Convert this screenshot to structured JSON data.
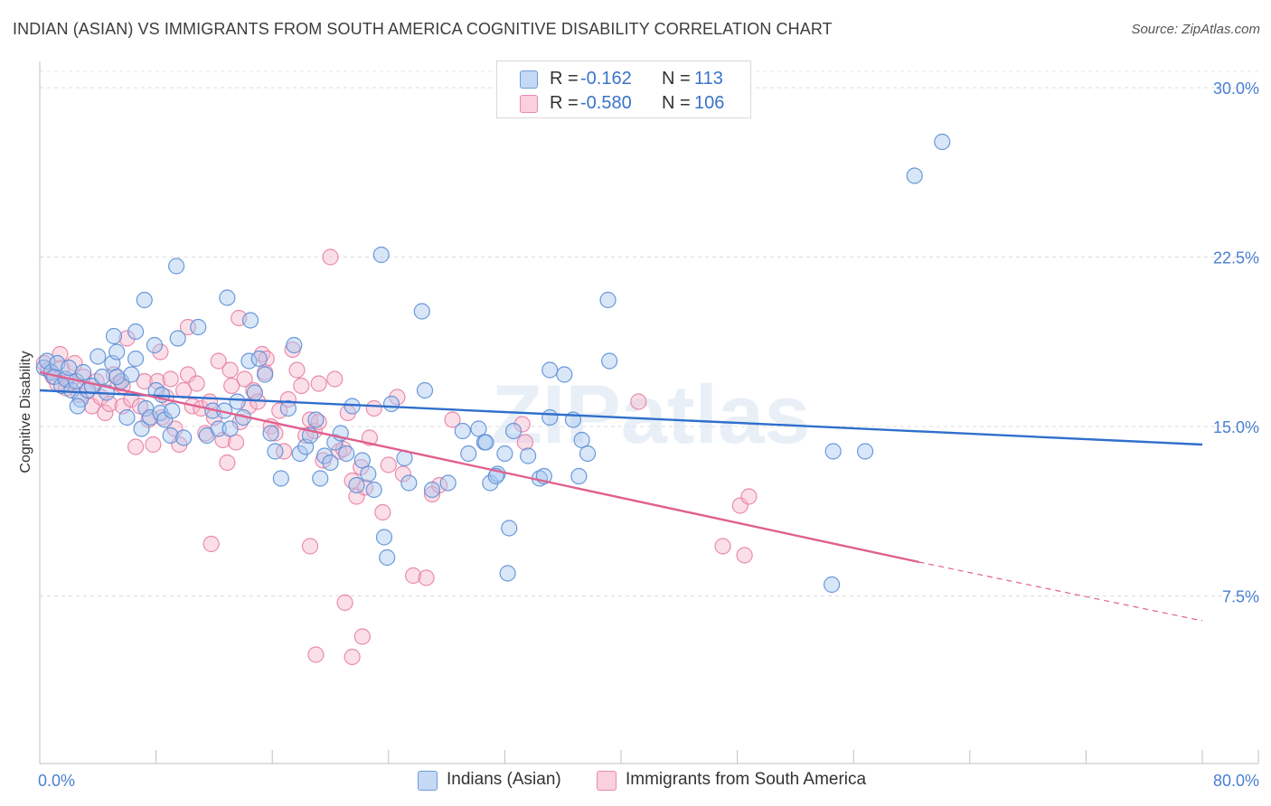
{
  "title": "INDIAN (ASIAN) VS IMMIGRANTS FROM SOUTH AMERICA COGNITIVE DISABILITY CORRELATION CHART",
  "source": "Source: ZipAtlas.com",
  "watermark": "ZIPatlas",
  "legend": {
    "series1": {
      "r_label": "R =",
      "r_value": "-0.162",
      "n_label": "N =",
      "n_value": "113"
    },
    "series2": {
      "r_label": "R =",
      "r_value": "-0.580",
      "n_label": "N =",
      "n_value": "106"
    }
  },
  "colors": {
    "blue_fill": "#a9c8f0",
    "blue_stroke": "#5b8ed6",
    "blue_line": "#2f6fcc",
    "pink_fill": "#f7b7cb",
    "pink_stroke": "#e77fa3",
    "pink_line": "#e0608e",
    "tick_text": "#4a7fd0"
  },
  "chart_data": {
    "type": "scatter",
    "title": "INDIAN (ASIAN) VS IMMIGRANTS FROM SOUTH AMERICA COGNITIVE DISABILITY CORRELATION CHART",
    "xlabel": "",
    "ylabel": "Cognitive Disability",
    "xlim": [
      0,
      80
    ],
    "ylim": [
      0,
      31
    ],
    "x_tick_labels": [
      "0.0%",
      "80.0%"
    ],
    "y_ticks": [
      7.5,
      15.0,
      22.5,
      30.0
    ],
    "y_tick_labels": [
      "7.5%",
      "15.0%",
      "22.5%",
      "30.0%"
    ],
    "grid": true,
    "legend_position": "top-center",
    "series": [
      {
        "name": "Indians (Asian)",
        "color": "#a9c8f0",
        "trend": {
          "x": [
            0,
            80
          ],
          "y": [
            16.6,
            14.2
          ]
        },
        "points": [
          [
            0.3,
            17.6
          ],
          [
            0.5,
            17.9
          ],
          [
            0.8,
            17.4
          ],
          [
            1.0,
            17.2
          ],
          [
            1.2,
            17.8
          ],
          [
            1.5,
            16.8
          ],
          [
            1.8,
            17.1
          ],
          [
            2.0,
            17.6
          ],
          [
            2.2,
            16.6
          ],
          [
            2.5,
            17.0
          ],
          [
            2.8,
            16.2
          ],
          [
            3.0,
            17.4
          ],
          [
            3.3,
            16.6
          ],
          [
            3.6,
            16.8
          ],
          [
            4.0,
            18.1
          ],
          [
            4.3,
            17.2
          ],
          [
            4.6,
            16.5
          ],
          [
            5.0,
            17.8
          ],
          [
            5.3,
            18.3
          ],
          [
            5.6,
            17.0
          ],
          [
            6.0,
            15.4
          ],
          [
            6.3,
            17.3
          ],
          [
            6.6,
            18.0
          ],
          [
            7.0,
            14.9
          ],
          [
            7.3,
            15.8
          ],
          [
            7.6,
            15.4
          ],
          [
            8.0,
            16.6
          ],
          [
            8.3,
            15.6
          ],
          [
            8.6,
            15.3
          ],
          [
            9.0,
            14.6
          ],
          [
            5.3,
            17.2
          ],
          [
            2.6,
            15.9
          ],
          [
            5.1,
            19.0
          ],
          [
            6.6,
            19.2
          ],
          [
            7.2,
            20.6
          ],
          [
            7.9,
            18.6
          ],
          [
            8.4,
            16.4
          ],
          [
            9.1,
            15.7
          ],
          [
            9.5,
            18.9
          ],
          [
            9.9,
            14.5
          ],
          [
            11.5,
            14.6
          ],
          [
            11.9,
            15.7
          ],
          [
            12.3,
            14.9
          ],
          [
            12.7,
            15.7
          ],
          [
            13.1,
            14.9
          ],
          [
            13.6,
            16.1
          ],
          [
            14.0,
            15.4
          ],
          [
            14.4,
            17.9
          ],
          [
            14.8,
            16.5
          ],
          [
            15.1,
            18.0
          ],
          [
            15.5,
            17.3
          ],
          [
            15.9,
            14.7
          ],
          [
            16.2,
            13.9
          ],
          [
            16.6,
            12.7
          ],
          [
            17.1,
            15.8
          ],
          [
            17.5,
            18.6
          ],
          [
            17.9,
            13.8
          ],
          [
            18.3,
            14.1
          ],
          [
            18.6,
            14.6
          ],
          [
            19.0,
            15.3
          ],
          [
            19.3,
            12.7
          ],
          [
            19.6,
            13.7
          ],
          [
            20.0,
            13.4
          ],
          [
            20.3,
            14.3
          ],
          [
            20.7,
            14.7
          ],
          [
            21.1,
            13.8
          ],
          [
            21.5,
            15.9
          ],
          [
            21.8,
            12.4
          ],
          [
            22.2,
            13.5
          ],
          [
            22.6,
            12.9
          ],
          [
            23.0,
            12.2
          ],
          [
            23.7,
            10.1
          ],
          [
            23.9,
            9.2
          ],
          [
            24.2,
            16.0
          ],
          [
            25.1,
            13.6
          ],
          [
            25.4,
            12.5
          ],
          [
            26.5,
            16.6
          ],
          [
            27.0,
            12.2
          ],
          [
            28.1,
            12.5
          ],
          [
            29.1,
            14.8
          ],
          [
            29.5,
            13.8
          ],
          [
            30.2,
            14.9
          ],
          [
            30.6,
            14.3
          ],
          [
            31.0,
            12.5
          ],
          [
            31.5,
            12.9
          ],
          [
            32.0,
            13.8
          ],
          [
            32.3,
            10.5
          ],
          [
            32.6,
            14.8
          ],
          [
            33.6,
            13.7
          ],
          [
            34.4,
            12.7
          ],
          [
            34.7,
            12.8
          ],
          [
            35.1,
            17.5
          ],
          [
            36.1,
            17.3
          ],
          [
            36.7,
            15.3
          ],
          [
            37.3,
            14.4
          ],
          [
            37.7,
            13.8
          ],
          [
            39.1,
            20.6
          ],
          [
            39.2,
            17.9
          ],
          [
            37.1,
            12.8
          ],
          [
            32.2,
            8.5
          ],
          [
            30.7,
            14.3
          ],
          [
            12.9,
            20.7
          ],
          [
            10.9,
            19.4
          ],
          [
            9.4,
            22.1
          ],
          [
            14.5,
            19.7
          ],
          [
            23.5,
            22.6
          ],
          [
            26.3,
            20.1
          ],
          [
            31.4,
            12.8
          ],
          [
            54.6,
            13.9
          ],
          [
            56.8,
            13.9
          ],
          [
            60.2,
            26.1
          ],
          [
            62.1,
            27.6
          ],
          [
            54.5,
            8.0
          ],
          [
            35.1,
            15.4
          ]
        ]
      },
      {
        "name": "Immigrants from South America",
        "color": "#f7b7cb",
        "trend": {
          "x": [
            0,
            60.5
          ],
          "y": [
            17.4,
            9.0
          ]
        },
        "trend_dashed": {
          "x": [
            60.5,
            80
          ],
          "y": [
            9.0,
            6.4
          ]
        },
        "points": [
          [
            0.3,
            17.8
          ],
          [
            0.6,
            17.5
          ],
          [
            0.9,
            17.2
          ],
          [
            1.2,
            16.9
          ],
          [
            1.5,
            17.6
          ],
          [
            1.8,
            16.7
          ],
          [
            2.1,
            17.0
          ],
          [
            2.4,
            17.8
          ],
          [
            2.7,
            16.4
          ],
          [
            3.0,
            17.2
          ],
          [
            3.3,
            16.6
          ],
          [
            3.6,
            15.9
          ],
          [
            3.9,
            17.0
          ],
          [
            4.2,
            16.3
          ],
          [
            4.5,
            15.6
          ],
          [
            4.8,
            16.0
          ],
          [
            5.1,
            17.3
          ],
          [
            5.4,
            16.9
          ],
          [
            5.7,
            15.9
          ],
          [
            6.0,
            18.9
          ],
          [
            6.3,
            16.2
          ],
          [
            6.6,
            14.1
          ],
          [
            6.9,
            15.9
          ],
          [
            7.2,
            17.0
          ],
          [
            7.5,
            15.3
          ],
          [
            7.8,
            14.2
          ],
          [
            8.1,
            17.0
          ],
          [
            8.4,
            15.4
          ],
          [
            8.7,
            16.3
          ],
          [
            9.0,
            17.1
          ],
          [
            9.3,
            14.9
          ],
          [
            9.6,
            14.2
          ],
          [
            9.9,
            16.6
          ],
          [
            10.2,
            17.3
          ],
          [
            10.5,
            15.9
          ],
          [
            10.8,
            16.9
          ],
          [
            11.1,
            15.8
          ],
          [
            11.4,
            14.7
          ],
          [
            11.7,
            16.1
          ],
          [
            12.0,
            15.4
          ],
          [
            12.3,
            17.9
          ],
          [
            12.6,
            14.4
          ],
          [
            12.9,
            13.4
          ],
          [
            13.2,
            16.8
          ],
          [
            13.5,
            14.3
          ],
          [
            13.8,
            15.2
          ],
          [
            14.1,
            17.1
          ],
          [
            14.4,
            15.9
          ],
          [
            14.7,
            16.6
          ],
          [
            15.0,
            16.1
          ],
          [
            15.3,
            18.2
          ],
          [
            15.6,
            18.0
          ],
          [
            15.9,
            15.0
          ],
          [
            16.2,
            14.7
          ],
          [
            16.5,
            15.7
          ],
          [
            16.8,
            13.9
          ],
          [
            17.1,
            16.2
          ],
          [
            17.4,
            18.4
          ],
          [
            17.7,
            17.5
          ],
          [
            18.0,
            16.8
          ],
          [
            18.3,
            14.6
          ],
          [
            18.6,
            15.3
          ],
          [
            18.9,
            14.8
          ],
          [
            19.2,
            15.2
          ],
          [
            19.5,
            13.5
          ],
          [
            20.0,
            22.5
          ],
          [
            20.3,
            17.1
          ],
          [
            20.6,
            13.9
          ],
          [
            20.9,
            14.0
          ],
          [
            21.2,
            15.6
          ],
          [
            21.5,
            12.6
          ],
          [
            21.8,
            11.9
          ],
          [
            22.1,
            13.2
          ],
          [
            22.4,
            12.3
          ],
          [
            22.7,
            14.5
          ],
          [
            23.0,
            15.8
          ],
          [
            23.6,
            11.2
          ],
          [
            24.0,
            13.3
          ],
          [
            25.0,
            12.9
          ],
          [
            25.7,
            8.4
          ],
          [
            27.0,
            12.0
          ],
          [
            28.4,
            15.3
          ],
          [
            33.4,
            14.3
          ],
          [
            22.2,
            5.7
          ],
          [
            21.0,
            7.2
          ],
          [
            21.5,
            4.8
          ],
          [
            19.0,
            4.9
          ],
          [
            18.6,
            9.7
          ],
          [
            11.8,
            9.8
          ],
          [
            33.2,
            15.1
          ],
          [
            41.2,
            16.1
          ],
          [
            48.2,
            11.5
          ],
          [
            48.8,
            11.9
          ],
          [
            47.0,
            9.7
          ],
          [
            48.5,
            9.3
          ],
          [
            13.7,
            19.8
          ],
          [
            8.3,
            18.3
          ],
          [
            10.2,
            19.4
          ],
          [
            1.4,
            18.2
          ],
          [
            24.6,
            16.3
          ],
          [
            26.6,
            8.3
          ],
          [
            27.5,
            12.4
          ],
          [
            13.1,
            17.5
          ],
          [
            19.2,
            16.9
          ],
          [
            5.7,
            16.8
          ],
          [
            15.5,
            17.4
          ]
        ]
      }
    ]
  }
}
